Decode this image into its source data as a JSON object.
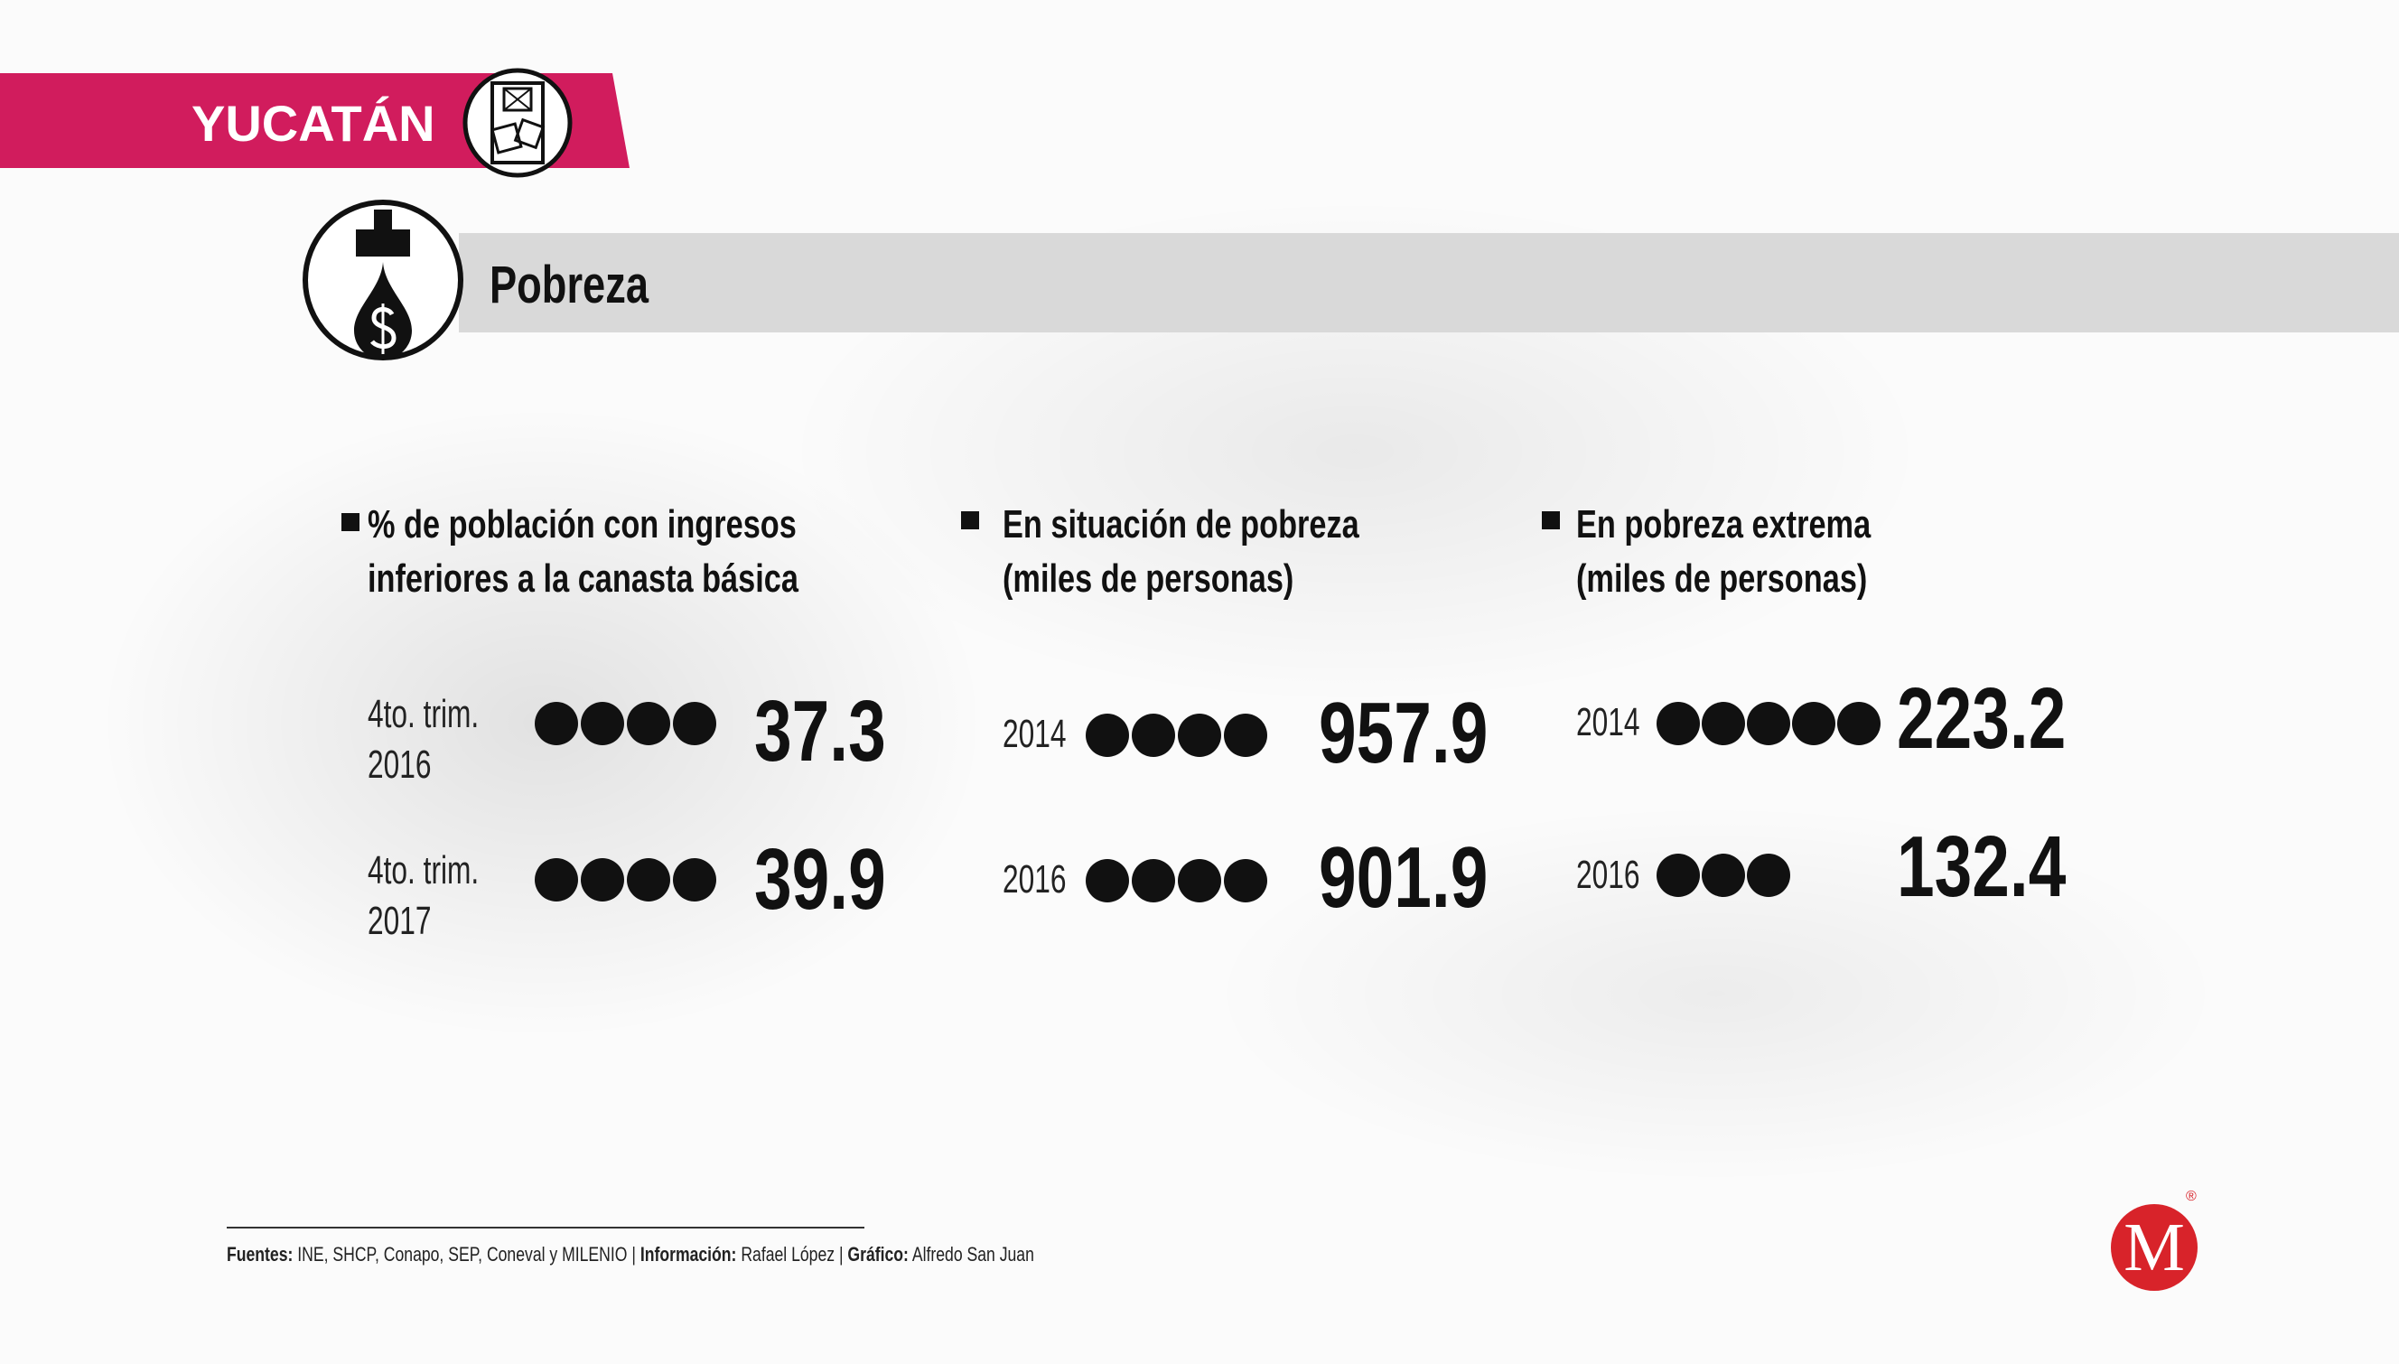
{
  "header": {
    "region": "YUCATÁN",
    "topic": "Pobreza"
  },
  "sections": [
    {
      "title_lines": [
        "% de población con ingresos",
        "inferiores a la canasta básica"
      ],
      "rows": [
        {
          "label_lines": [
            "4to. trim.",
            "2016"
          ],
          "value": 37.3
        },
        {
          "label_lines": [
            "4to. trim.",
            "2017"
          ],
          "value": 39.9
        }
      ]
    },
    {
      "title_lines": [
        "En situación de pobreza",
        "(miles de personas)"
      ],
      "rows": [
        {
          "label": "2014",
          "value": 957.9
        },
        {
          "label": "2016",
          "value": 901.9
        }
      ]
    },
    {
      "title_lines": [
        "En pobreza extrema",
        "(miles de personas)"
      ],
      "rows": [
        {
          "label": "2014",
          "value": 223.2
        },
        {
          "label": "2016",
          "value": 132.4
        }
      ]
    }
  ],
  "footer": {
    "sources_label": "Fuentes:",
    "sources": "INE, SHCP, Conapo, SEP, Coneval y MILENIO",
    "separator": "|",
    "info_label": "Información:",
    "info": "Rafael López",
    "graphic_label": "Gráfico:",
    "graphic": "Alfredo San Juan"
  },
  "logo": {
    "letter": "M",
    "mark": "®"
  }
}
